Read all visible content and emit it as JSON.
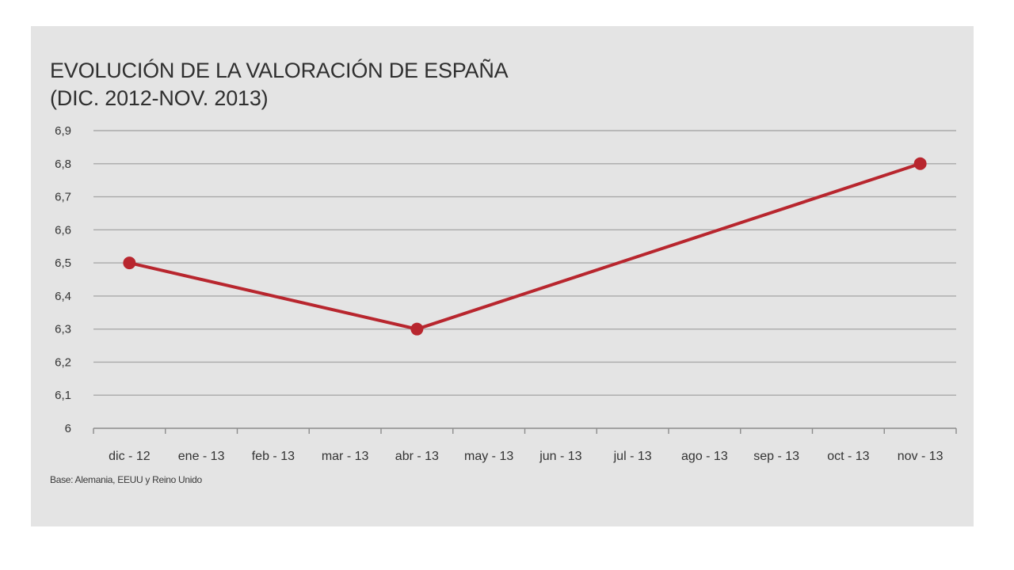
{
  "chart_data": {
    "type": "line",
    "title": "EVOLUCIÓN DE LA VALORACIÓN DE ESPAÑA",
    "subtitle": "(DIC. 2012-NOV. 2013)",
    "categories": [
      "dic - 12",
      "ene - 13",
      "feb - 13",
      "mar - 13",
      "abr - 13",
      "may - 13",
      "jun - 13",
      "jul - 13",
      "ago - 13",
      "sep - 13",
      "oct - 13",
      "nov - 13"
    ],
    "points": [
      {
        "category": "dic - 12",
        "value": 6.5
      },
      {
        "category": "abr - 13",
        "value": 6.3
      },
      {
        "category": "nov - 13",
        "value": 6.8
      }
    ],
    "y_ticks": [
      "6",
      "6,1",
      "6,2",
      "6,3",
      "6,4",
      "6,5",
      "6,6",
      "6,7",
      "6,8",
      "6,9"
    ],
    "ylim": [
      6,
      6.9
    ],
    "grid": true,
    "legend": "none",
    "note": "Base: Alemania, EEUU y Reino Unido",
    "colors": {
      "line": "#b8262e",
      "grid": "#a9a9a9",
      "axis": "#8c8c8c",
      "background": "#e4e4e4"
    }
  }
}
